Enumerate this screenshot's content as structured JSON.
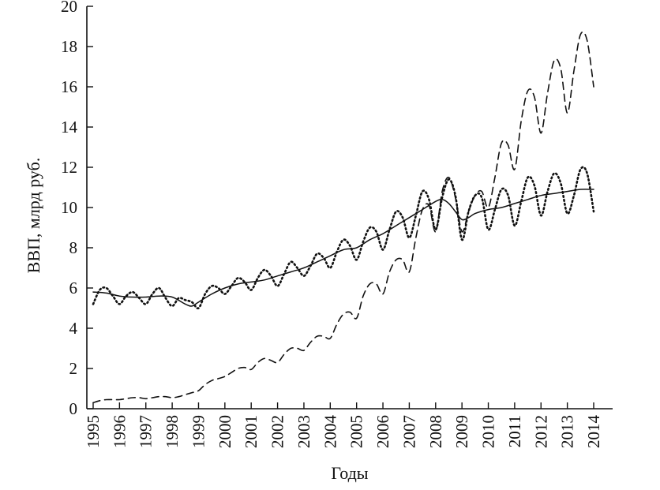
{
  "chart_data": {
    "type": "line",
    "title": "",
    "xlabel": "Годы",
    "ylabel": "ВВП, млрд руб.",
    "xlim": [
      1995,
      2014
    ],
    "ylim": [
      0,
      20
    ],
    "yticks": [
      0,
      2,
      4,
      6,
      8,
      10,
      12,
      14,
      16,
      18,
      20
    ],
    "xticks": [
      1995,
      1996,
      1997,
      1998,
      1999,
      2000,
      2001,
      2002,
      2003,
      2004,
      2005,
      2006,
      2007,
      2008,
      2009,
      2010,
      2011,
      2012,
      2013,
      2014
    ],
    "xtick_labels": [
      "1995",
      "1996",
      "1997",
      "1998",
      "1999",
      "2000",
      "2001",
      "2002",
      "2003",
      "2004",
      "2005",
      "2006",
      "2007",
      "2008",
      "2009",
      "2010",
      "2011",
      "2012",
      "2013",
      "2014"
    ],
    "ytick_labels": [
      "0",
      "2",
      "4",
      "6",
      "8",
      "10",
      "12",
      "14",
      "16",
      "18",
      "20"
    ],
    "grid": false,
    "legend": "none",
    "series": [
      {
        "style": "dotted",
        "x": [
          1995.0,
          1995.25,
          1995.5,
          1995.75,
          1996.0,
          1996.25,
          1996.5,
          1996.75,
          1997.0,
          1997.25,
          1997.5,
          1997.75,
          1998.0,
          1998.25,
          1998.5,
          1998.75,
          1999.0,
          1999.25,
          1999.5,
          1999.75,
          2000.0,
          2000.25,
          2000.5,
          2000.75,
          2001.0,
          2001.25,
          2001.5,
          2001.75,
          2002.0,
          2002.25,
          2002.5,
          2002.75,
          2003.0,
          2003.25,
          2003.5,
          2003.75,
          2004.0,
          2004.25,
          2004.5,
          2004.75,
          2005.0,
          2005.25,
          2005.5,
          2005.75,
          2006.0,
          2006.25,
          2006.5,
          2006.75,
          2007.0,
          2007.25,
          2007.5,
          2007.75,
          2008.0,
          2008.25,
          2008.5,
          2008.75,
          2009.0,
          2009.25,
          2009.5,
          2009.75,
          2010.0,
          2010.25,
          2010.5,
          2010.75,
          2011.0,
          2011.25,
          2011.5,
          2011.75,
          2012.0,
          2012.25,
          2012.5,
          2012.75,
          2013.0,
          2013.25,
          2013.5,
          2013.75,
          2014.0
        ],
        "y": [
          5.2,
          5.9,
          6.0,
          5.6,
          5.2,
          5.6,
          5.8,
          5.5,
          5.2,
          5.7,
          6.0,
          5.5,
          5.1,
          5.5,
          5.4,
          5.3,
          5.0,
          5.7,
          6.1,
          6.0,
          5.7,
          6.1,
          6.5,
          6.3,
          5.9,
          6.5,
          6.9,
          6.6,
          6.1,
          6.7,
          7.3,
          7.0,
          6.6,
          7.1,
          7.7,
          7.5,
          7.0,
          7.8,
          8.4,
          8.1,
          7.4,
          8.3,
          9.0,
          8.8,
          7.9,
          8.9,
          9.8,
          9.5,
          8.5,
          9.6,
          10.8,
          10.4,
          8.9,
          10.5,
          11.4,
          10.6,
          8.4,
          9.8,
          10.6,
          10.5,
          8.9,
          9.9,
          10.9,
          10.6,
          9.1,
          10.3,
          11.5,
          11.1,
          9.6,
          10.8,
          11.7,
          11.2,
          9.7,
          10.6,
          11.9,
          11.7,
          9.8
        ]
      },
      {
        "style": "solid",
        "x": [
          1995.0,
          1995.5,
          1996.0,
          1996.5,
          1997.0,
          1997.5,
          1998.0,
          1998.5,
          1998.75,
          1999.0,
          1999.5,
          2000.0,
          2000.5,
          2001.0,
          2001.5,
          2002.0,
          2002.5,
          2003.0,
          2003.5,
          2004.0,
          2004.5,
          2005.0,
          2005.5,
          2006.0,
          2006.5,
          2007.0,
          2007.5,
          2008.0,
          2008.25,
          2008.5,
          2008.75,
          2009.0,
          2009.25,
          2009.5,
          2010.0,
          2010.5,
          2011.0,
          2011.5,
          2012.0,
          2012.5,
          2013.0,
          2013.5,
          2014.0
        ],
        "y": [
          5.8,
          5.75,
          5.6,
          5.55,
          5.55,
          5.6,
          5.55,
          5.2,
          5.1,
          5.3,
          5.7,
          6.0,
          6.2,
          6.3,
          6.4,
          6.6,
          6.8,
          7.0,
          7.3,
          7.6,
          7.9,
          8.0,
          8.4,
          8.7,
          9.1,
          9.5,
          9.9,
          10.3,
          10.4,
          10.2,
          9.8,
          9.4,
          9.5,
          9.7,
          9.9,
          10.0,
          10.2,
          10.4,
          10.6,
          10.7,
          10.8,
          10.9,
          10.9
        ]
      },
      {
        "style": "dashed",
        "x": [
          1995.0,
          1995.25,
          1995.5,
          1995.75,
          1996.0,
          1996.25,
          1996.5,
          1996.75,
          1997.0,
          1997.25,
          1997.5,
          1997.75,
          1998.0,
          1998.25,
          1998.5,
          1998.75,
          1999.0,
          1999.25,
          1999.5,
          1999.75,
          2000.0,
          2000.25,
          2000.5,
          2000.75,
          2001.0,
          2001.25,
          2001.5,
          2001.75,
          2002.0,
          2002.25,
          2002.5,
          2002.75,
          2003.0,
          2003.25,
          2003.5,
          2003.75,
          2004.0,
          2004.25,
          2004.5,
          2004.75,
          2005.0,
          2005.25,
          2005.5,
          2005.75,
          2006.0,
          2006.25,
          2006.5,
          2006.75,
          2007.0,
          2007.25,
          2007.5,
          2007.75,
          2008.0,
          2008.25,
          2008.5,
          2008.75,
          2009.0,
          2009.25,
          2009.5,
          2009.75,
          2010.0,
          2010.25,
          2010.5,
          2010.75,
          2011.0,
          2011.25,
          2011.5,
          2011.75,
          2012.0,
          2012.25,
          2012.5,
          2012.75,
          2013.0,
          2013.25,
          2013.5,
          2013.75,
          2014.0
        ],
        "y": [
          0.3,
          0.4,
          0.45,
          0.45,
          0.45,
          0.5,
          0.55,
          0.55,
          0.5,
          0.55,
          0.6,
          0.6,
          0.55,
          0.6,
          0.7,
          0.8,
          0.9,
          1.2,
          1.4,
          1.5,
          1.6,
          1.8,
          2.0,
          2.05,
          1.95,
          2.3,
          2.5,
          2.4,
          2.3,
          2.7,
          3.0,
          3.0,
          2.9,
          3.3,
          3.6,
          3.6,
          3.5,
          4.2,
          4.7,
          4.8,
          4.5,
          5.6,
          6.2,
          6.2,
          5.7,
          6.8,
          7.4,
          7.4,
          6.8,
          8.5,
          9.9,
          10.1,
          8.8,
          10.8,
          11.5,
          10.5,
          8.8,
          9.8,
          10.6,
          10.8,
          10.0,
          11.5,
          13.2,
          13.1,
          11.9,
          14.3,
          15.8,
          15.5,
          13.7,
          15.7,
          17.3,
          16.9,
          14.7,
          16.8,
          18.6,
          18.3,
          16.0
        ]
      }
    ]
  }
}
